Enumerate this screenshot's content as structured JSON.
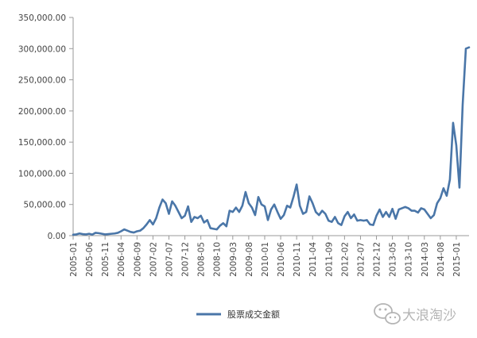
{
  "chart_data": {
    "type": "line",
    "title": "",
    "xlabel": "",
    "ylabel": "",
    "ylim": [
      0,
      350000
    ],
    "y_ticks": [
      "0.00",
      "50,000.00",
      "100,000.00",
      "150,000.00",
      "200,000.00",
      "250,000.00",
      "300,000.00",
      "350,000.00"
    ],
    "x_ticks": [
      "2005-01",
      "2005-06",
      "2005-11",
      "2006-04",
      "2006-09",
      "2007-02",
      "2007-07",
      "2007-12",
      "2008-05",
      "2008-10",
      "2009-03",
      "2009-08",
      "2010-01",
      "2010-06",
      "2010-11",
      "2011-04",
      "2011-09",
      "2012-02",
      "2012-07",
      "2012-12",
      "2013-05",
      "2013-10",
      "2014-03",
      "2014-08",
      "2015-01"
    ],
    "grid": false,
    "legend_position": "bottom-center",
    "color": "#4a76a8",
    "series": [
      {
        "name": "股票成交金额",
        "x": [
          "2005-01",
          "2005-02",
          "2005-03",
          "2005-04",
          "2005-05",
          "2005-06",
          "2005-07",
          "2005-08",
          "2005-09",
          "2005-10",
          "2005-11",
          "2005-12",
          "2006-01",
          "2006-02",
          "2006-03",
          "2006-04",
          "2006-05",
          "2006-06",
          "2006-07",
          "2006-08",
          "2006-09",
          "2006-10",
          "2006-11",
          "2006-12",
          "2007-01",
          "2007-02",
          "2007-03",
          "2007-04",
          "2007-05",
          "2007-06",
          "2007-07",
          "2007-08",
          "2007-09",
          "2007-10",
          "2007-11",
          "2007-12",
          "2008-01",
          "2008-02",
          "2008-03",
          "2008-04",
          "2008-05",
          "2008-06",
          "2008-07",
          "2008-08",
          "2008-09",
          "2008-10",
          "2008-11",
          "2008-12",
          "2009-01",
          "2009-02",
          "2009-03",
          "2009-04",
          "2009-05",
          "2009-06",
          "2009-07",
          "2009-08",
          "2009-09",
          "2009-10",
          "2009-11",
          "2009-12",
          "2010-01",
          "2010-02",
          "2010-03",
          "2010-04",
          "2010-05",
          "2010-06",
          "2010-07",
          "2010-08",
          "2010-09",
          "2010-10",
          "2010-11",
          "2010-12",
          "2011-01",
          "2011-02",
          "2011-03",
          "2011-04",
          "2011-05",
          "2011-06",
          "2011-07",
          "2011-08",
          "2011-09",
          "2011-10",
          "2011-11",
          "2011-12",
          "2012-01",
          "2012-02",
          "2012-03",
          "2012-04",
          "2012-05",
          "2012-06",
          "2012-07",
          "2012-08",
          "2012-09",
          "2012-10",
          "2012-11",
          "2012-12",
          "2013-01",
          "2013-02",
          "2013-03",
          "2013-04",
          "2013-05",
          "2013-06",
          "2013-07",
          "2013-08",
          "2013-09",
          "2013-10",
          "2013-11",
          "2013-12",
          "2014-01",
          "2014-02",
          "2014-03",
          "2014-04",
          "2014-05",
          "2014-06",
          "2014-07",
          "2014-08",
          "2014-09",
          "2014-10",
          "2014-11",
          "2014-12",
          "2015-01",
          "2015-02",
          "2015-03",
          "2015-04",
          "2015-05"
        ],
        "values": [
          1500,
          2000,
          3500,
          2500,
          2000,
          3000,
          1800,
          4500,
          4000,
          3000,
          2000,
          2500,
          3000,
          3500,
          4500,
          7000,
          10000,
          8000,
          6000,
          5000,
          7000,
          8000,
          12000,
          18000,
          25000,
          18000,
          28000,
          45000,
          58000,
          52000,
          35000,
          55000,
          48000,
          38000,
          28000,
          32000,
          47000,
          22000,
          30000,
          28000,
          32000,
          21000,
          25000,
          12000,
          11000,
          10000,
          16000,
          20000,
          15000,
          40000,
          38000,
          45000,
          38000,
          48000,
          70000,
          52000,
          45000,
          33000,
          62000,
          50000,
          47000,
          25000,
          42000,
          50000,
          38000,
          27000,
          33000,
          48000,
          45000,
          62000,
          82000,
          48000,
          35000,
          38000,
          63000,
          52000,
          38000,
          33000,
          40000,
          35000,
          24000,
          22000,
          30000,
          20000,
          17000,
          31000,
          38000,
          28000,
          34000,
          24000,
          25000,
          24000,
          25000,
          18000,
          17000,
          32000,
          42000,
          30000,
          38000,
          30000,
          43000,
          27000,
          42000,
          44000,
          46000,
          44000,
          40000,
          40000,
          37000,
          44000,
          42000,
          35000,
          28000,
          33000,
          52000,
          60000,
          76000,
          64000,
          90000,
          181000,
          145000,
          77000,
          210000,
          300000,
          302000
        ]
      }
    ]
  },
  "legend": {
    "label": "股票成交金额"
  },
  "watermark": {
    "text": "大浪淘沙",
    "icon": "wechat-icon"
  }
}
